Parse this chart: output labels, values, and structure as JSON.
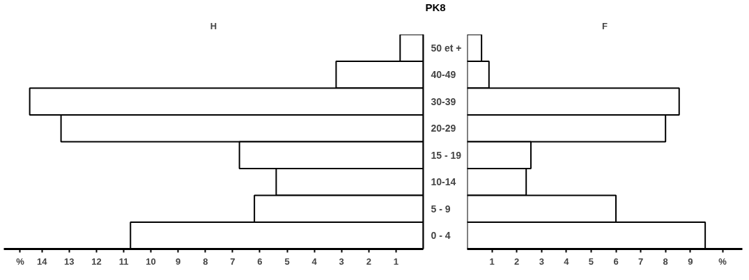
{
  "chart_data": [
    {
      "type": "bar",
      "orientation": "horizontal",
      "title": "PK8",
      "subtitle": "H",
      "categories": [
        "50 et +",
        "40-49",
        "30-39",
        "20-29",
        "15 - 19",
        "10-14",
        "5 - 9",
        "0 - 4"
      ],
      "values": [
        0.85,
        3.2,
        14.45,
        13.3,
        6.75,
        5.4,
        6.2,
        10.75
      ],
      "color": "#ffffff",
      "xlim": [
        15.4,
        0
      ],
      "xticks": [
        1,
        2,
        3,
        4,
        5,
        6,
        7,
        8,
        9,
        10,
        11,
        12,
        13,
        14,
        {
          "value": 14.8,
          "label": "%"
        }
      ],
      "grid": false
    },
    {
      "type": "bar",
      "orientation": "horizontal",
      "subtitle": "F",
      "categories": [
        null,
        null,
        null,
        null,
        null,
        null,
        null,
        null
      ],
      "values": [
        0.58,
        0.88,
        8.55,
        8.0,
        2.57,
        2.38,
        6.0,
        9.6
      ],
      "color": "#ffffff",
      "xlim": [
        0,
        11.1
      ],
      "xticks": [
        1,
        2,
        3,
        4,
        5,
        6,
        7,
        8,
        9,
        {
          "value": 10.3,
          "label": "%"
        }
      ],
      "grid": false
    }
  ]
}
